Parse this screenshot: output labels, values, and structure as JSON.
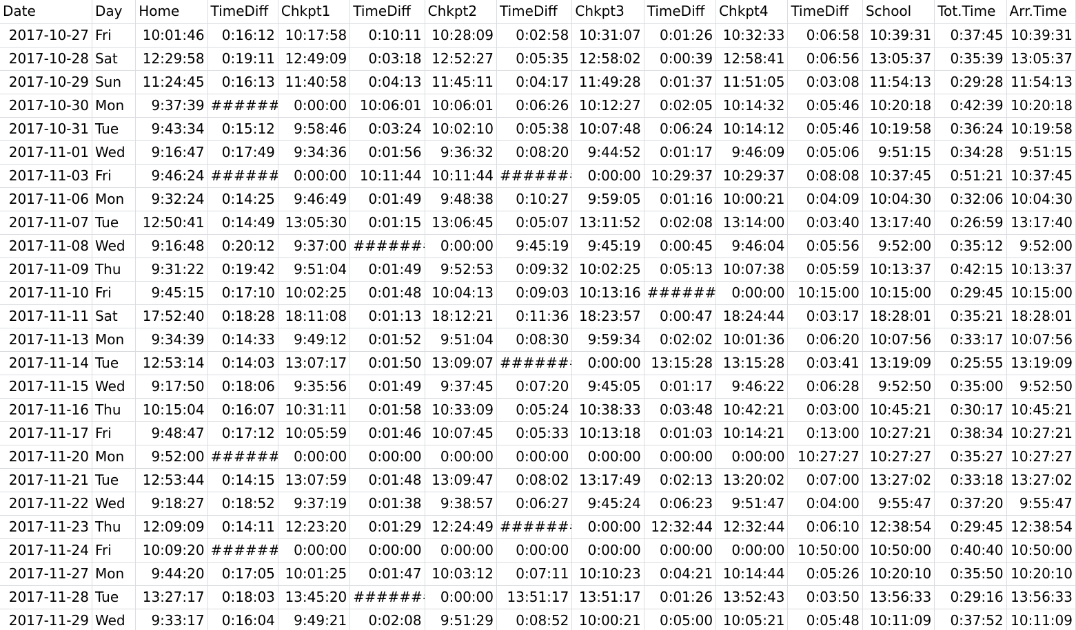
{
  "headers": [
    "Date",
    "Day",
    "Home",
    "TimeDiff",
    "Chkpt1",
    "TimeDiff",
    "Chkpt2",
    "TimeDiff",
    "Chkpt3",
    "TimeDiff",
    "Chkpt4",
    "TimeDiff",
    "School",
    "Tot.Time",
    "Arr.Time"
  ],
  "rows": [
    [
      "2017-10-27",
      "Fri",
      "10:01:46",
      "0:16:12",
      "10:17:58",
      "0:10:11",
      "10:28:09",
      "0:02:58",
      "10:31:07",
      "0:01:26",
      "10:32:33",
      "0:06:58",
      "10:39:31",
      "0:37:45",
      "10:39:31"
    ],
    [
      "2017-10-28",
      "Sat",
      "12:29:58",
      "0:19:11",
      "12:49:09",
      "0:03:18",
      "12:52:27",
      "0:05:35",
      "12:58:02",
      "0:00:39",
      "12:58:41",
      "0:06:56",
      "13:05:37",
      "0:35:39",
      "13:05:37"
    ],
    [
      "2017-10-29",
      "Sun",
      "11:24:45",
      "0:16:13",
      "11:40:58",
      "0:04:13",
      "11:45:11",
      "0:04:17",
      "11:49:28",
      "0:01:37",
      "11:51:05",
      "0:03:08",
      "11:54:13",
      "0:29:28",
      "11:54:13"
    ],
    [
      "2017-10-30",
      "Mon",
      "9:37:39",
      "#######",
      "0:00:00",
      "10:06:01",
      "10:06:01",
      "0:06:26",
      "10:12:27",
      "0:02:05",
      "10:14:32",
      "0:05:46",
      "10:20:18",
      "0:42:39",
      "10:20:18"
    ],
    [
      "2017-10-31",
      "Tue",
      "9:43:34",
      "0:15:12",
      "9:58:46",
      "0:03:24",
      "10:02:10",
      "0:05:38",
      "10:07:48",
      "0:06:24",
      "10:14:12",
      "0:05:46",
      "10:19:58",
      "0:36:24",
      "10:19:58"
    ],
    [
      "2017-11-01",
      "Wed",
      "9:16:47",
      "0:17:49",
      "9:34:36",
      "0:01:56",
      "9:36:32",
      "0:08:20",
      "9:44:52",
      "0:01:17",
      "9:46:09",
      "0:05:06",
      "9:51:15",
      "0:34:28",
      "9:51:15"
    ],
    [
      "2017-11-03",
      "Fri",
      "9:46:24",
      "#######",
      "0:00:00",
      "10:11:44",
      "10:11:44",
      "#######",
      "0:00:00",
      "10:29:37",
      "10:29:37",
      "0:08:08",
      "10:37:45",
      "0:51:21",
      "10:37:45"
    ],
    [
      "2017-11-06",
      "Mon",
      "9:32:24",
      "0:14:25",
      "9:46:49",
      "0:01:49",
      "9:48:38",
      "0:10:27",
      "9:59:05",
      "0:01:16",
      "10:00:21",
      "0:04:09",
      "10:04:30",
      "0:32:06",
      "10:04:30"
    ],
    [
      "2017-11-07",
      "Tue",
      "12:50:41",
      "0:14:49",
      "13:05:30",
      "0:01:15",
      "13:06:45",
      "0:05:07",
      "13:11:52",
      "0:02:08",
      "13:14:00",
      "0:03:40",
      "13:17:40",
      "0:26:59",
      "13:17:40"
    ],
    [
      "2017-11-08",
      "Wed",
      "9:16:48",
      "0:20:12",
      "9:37:00",
      "#######",
      "0:00:00",
      "9:45:19",
      "9:45:19",
      "0:00:45",
      "9:46:04",
      "0:05:56",
      "9:52:00",
      "0:35:12",
      "9:52:00"
    ],
    [
      "2017-11-09",
      "Thu",
      "9:31:22",
      "0:19:42",
      "9:51:04",
      "0:01:49",
      "9:52:53",
      "0:09:32",
      "10:02:25",
      "0:05:13",
      "10:07:38",
      "0:05:59",
      "10:13:37",
      "0:42:15",
      "10:13:37"
    ],
    [
      "2017-11-10",
      "Fri",
      "9:45:15",
      "0:17:10",
      "10:02:25",
      "0:01:48",
      "10:04:13",
      "0:09:03",
      "10:13:16",
      "#######",
      "0:00:00",
      "10:15:00",
      "10:15:00",
      "0:29:45",
      "10:15:00"
    ],
    [
      "2017-11-11",
      "Sat",
      "17:52:40",
      "0:18:28",
      "18:11:08",
      "0:01:13",
      "18:12:21",
      "0:11:36",
      "18:23:57",
      "0:00:47",
      "18:24:44",
      "0:03:17",
      "18:28:01",
      "0:35:21",
      "18:28:01"
    ],
    [
      "2017-11-13",
      "Mon",
      "9:34:39",
      "0:14:33",
      "9:49:12",
      "0:01:52",
      "9:51:04",
      "0:08:30",
      "9:59:34",
      "0:02:02",
      "10:01:36",
      "0:06:20",
      "10:07:56",
      "0:33:17",
      "10:07:56"
    ],
    [
      "2017-11-14",
      "Tue",
      "12:53:14",
      "0:14:03",
      "13:07:17",
      "0:01:50",
      "13:09:07",
      "#######",
      "0:00:00",
      "13:15:28",
      "13:15:28",
      "0:03:41",
      "13:19:09",
      "0:25:55",
      "13:19:09"
    ],
    [
      "2017-11-15",
      "Wed",
      "9:17:50",
      "0:18:06",
      "9:35:56",
      "0:01:49",
      "9:37:45",
      "0:07:20",
      "9:45:05",
      "0:01:17",
      "9:46:22",
      "0:06:28",
      "9:52:50",
      "0:35:00",
      "9:52:50"
    ],
    [
      "2017-11-16",
      "Thu",
      "10:15:04",
      "0:16:07",
      "10:31:11",
      "0:01:58",
      "10:33:09",
      "0:05:24",
      "10:38:33",
      "0:03:48",
      "10:42:21",
      "0:03:00",
      "10:45:21",
      "0:30:17",
      "10:45:21"
    ],
    [
      "2017-11-17",
      "Fri",
      "9:48:47",
      "0:17:12",
      "10:05:59",
      "0:01:46",
      "10:07:45",
      "0:05:33",
      "10:13:18",
      "0:01:03",
      "10:14:21",
      "0:13:00",
      "10:27:21",
      "0:38:34",
      "10:27:21"
    ],
    [
      "2017-11-20",
      "Mon",
      "9:52:00",
      "#######",
      "0:00:00",
      "0:00:00",
      "0:00:00",
      "0:00:00",
      "0:00:00",
      "0:00:00",
      "0:00:00",
      "10:27:27",
      "10:27:27",
      "0:35:27",
      "10:27:27"
    ],
    [
      "2017-11-21",
      "Tue",
      "12:53:44",
      "0:14:15",
      "13:07:59",
      "0:01:48",
      "13:09:47",
      "0:08:02",
      "13:17:49",
      "0:02:13",
      "13:20:02",
      "0:07:00",
      "13:27:02",
      "0:33:18",
      "13:27:02"
    ],
    [
      "2017-11-22",
      "Wed",
      "9:18:27",
      "0:18:52",
      "9:37:19",
      "0:01:38",
      "9:38:57",
      "0:06:27",
      "9:45:24",
      "0:06:23",
      "9:51:47",
      "0:04:00",
      "9:55:47",
      "0:37:20",
      "9:55:47"
    ],
    [
      "2017-11-23",
      "Thu",
      "12:09:09",
      "0:14:11",
      "12:23:20",
      "0:01:29",
      "12:24:49",
      "#######",
      "0:00:00",
      "12:32:44",
      "12:32:44",
      "0:06:10",
      "12:38:54",
      "0:29:45",
      "12:38:54"
    ],
    [
      "2017-11-24",
      "Fri",
      "10:09:20",
      "#######",
      "0:00:00",
      "0:00:00",
      "0:00:00",
      "0:00:00",
      "0:00:00",
      "0:00:00",
      "0:00:00",
      "10:50:00",
      "10:50:00",
      "0:40:40",
      "10:50:00"
    ],
    [
      "2017-11-27",
      "Mon",
      "9:44:20",
      "0:17:05",
      "10:01:25",
      "0:01:47",
      "10:03:12",
      "0:07:11",
      "10:10:23",
      "0:04:21",
      "10:14:44",
      "0:05:26",
      "10:20:10",
      "0:35:50",
      "10:20:10"
    ],
    [
      "2017-11-28",
      "Tue",
      "13:27:17",
      "0:18:03",
      "13:45:20",
      "#######",
      "0:00:00",
      "13:51:17",
      "13:51:17",
      "0:01:26",
      "13:52:43",
      "0:03:50",
      "13:56:33",
      "0:29:16",
      "13:56:33"
    ],
    [
      "2017-11-29",
      "Wed",
      "9:33:17",
      "0:16:04",
      "9:49:21",
      "0:02:08",
      "9:51:29",
      "0:08:52",
      "10:00:21",
      "0:05:00",
      "10:05:21",
      "0:05:48",
      "10:11:09",
      "0:37:52",
      "10:11:09"
    ]
  ]
}
